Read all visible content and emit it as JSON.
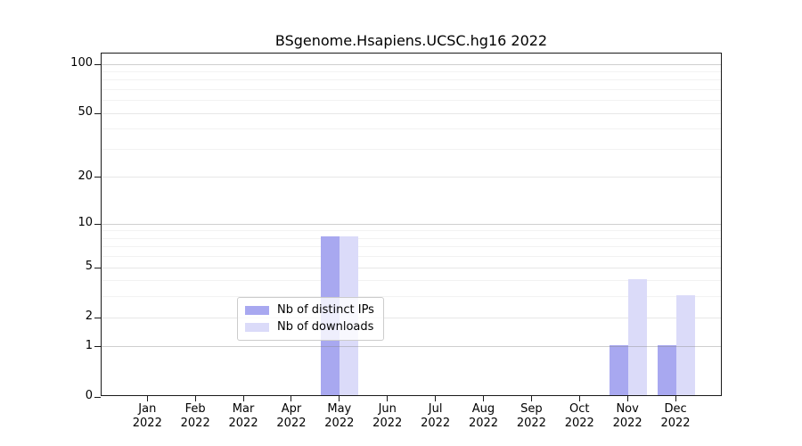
{
  "title": "BSgenome.Hsapiens.UCSC.hg16 2022",
  "chart_data": {
    "type": "bar",
    "categories": [
      "Jan 2022",
      "Feb 2022",
      "Mar 2022",
      "Apr 2022",
      "May 2022",
      "Jun 2022",
      "Jul 2022",
      "Aug 2022",
      "Sep 2022",
      "Oct 2022",
      "Nov 2022",
      "Dec 2022"
    ],
    "x_tick_months": [
      "Jan",
      "Feb",
      "Mar",
      "Apr",
      "May",
      "Jun",
      "Jul",
      "Aug",
      "Sep",
      "Oct",
      "Nov",
      "Dec"
    ],
    "x_tick_year": "2022",
    "series": [
      {
        "name": "Nb of distinct IPs",
        "color": "#a8a8f0",
        "values": [
          0,
          0,
          0,
          0,
          8,
          0,
          0,
          0,
          0,
          0,
          1,
          1
        ]
      },
      {
        "name": "Nb of downloads",
        "color": "#dbdbf9",
        "values": [
          0,
          0,
          0,
          0,
          8,
          0,
          0,
          0,
          0,
          0,
          4,
          3
        ]
      }
    ],
    "y_axis": {
      "scale": "log1p",
      "major_tick_labels": [
        "0",
        "1",
        "2",
        "5",
        "10",
        "20",
        "50",
        "100"
      ],
      "major_tick_values": [
        0,
        1,
        2,
        5,
        10,
        20,
        50,
        100
      ],
      "decade_grid_values": [
        1,
        10,
        100
      ],
      "sub_grid_values": [
        2,
        5,
        20,
        50
      ],
      "minor_grid_values": [
        3,
        4,
        6,
        7,
        8,
        9,
        30,
        40,
        60,
        70,
        80,
        90
      ],
      "ylim": [
        0,
        116
      ]
    },
    "legend": {
      "position": "lower center",
      "entries": [
        "Nb of distinct IPs",
        "Nb of downloads"
      ]
    },
    "grid": "on"
  }
}
